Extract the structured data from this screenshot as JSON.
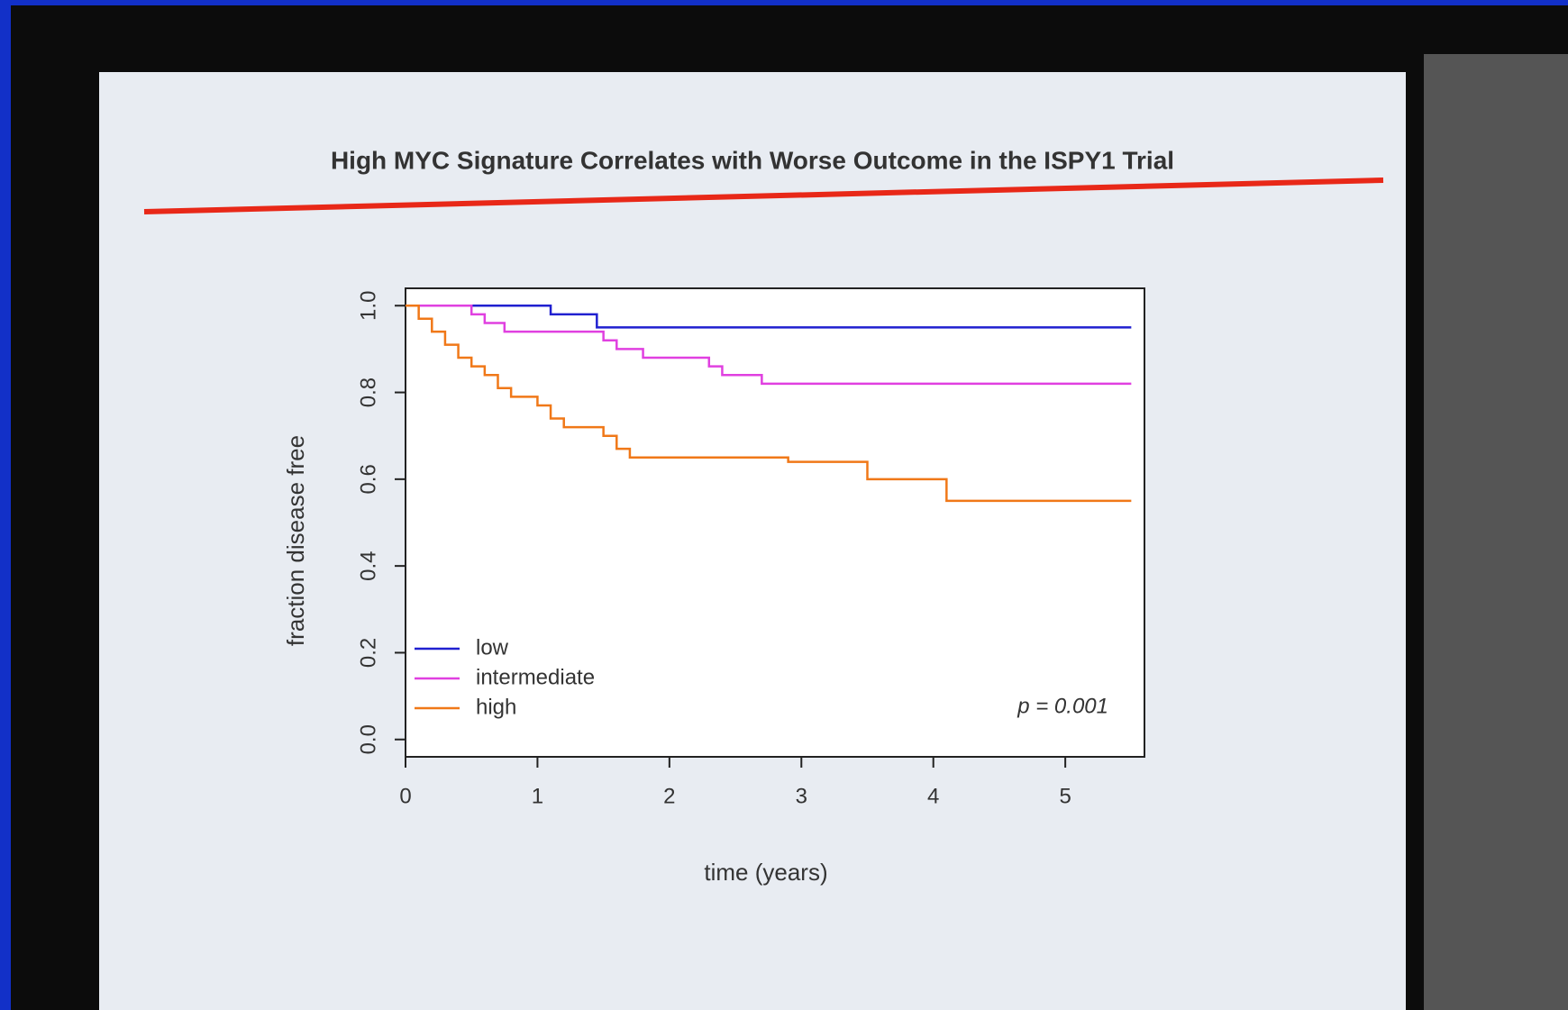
{
  "chart_data": {
    "type": "step",
    "title": "High MYC Signature Correlates with Worse Outcome in the ISPY1 Trial",
    "xlabel": "time (years)",
    "ylabel": "fraction disease free",
    "annotation": "p = 0.001",
    "xlim": [
      0,
      5.6
    ],
    "xticks": [
      0,
      1,
      2,
      3,
      4,
      5
    ],
    "ylim": [
      -0.04,
      1.04
    ],
    "yticks": [
      {
        "value": 0,
        "label": "0.0"
      },
      0.2,
      0.4,
      0.6,
      0.8,
      {
        "value": 1,
        "label": "1.0"
      }
    ],
    "legend": "bottom-left",
    "series": [
      {
        "name": "low",
        "color": "#2020d0",
        "x": [
          0,
          1.1,
          1.45,
          5.5
        ],
        "values": [
          1.0,
          0.98,
          0.95,
          0.95
        ]
      },
      {
        "name": "intermediate",
        "color": "#e040e0",
        "x": [
          0,
          0.5,
          0.6,
          0.75,
          1.5,
          1.6,
          1.8,
          2.3,
          2.4,
          2.7,
          5.5
        ],
        "values": [
          1.0,
          0.98,
          0.96,
          0.94,
          0.92,
          0.9,
          0.88,
          0.86,
          0.84,
          0.82,
          0.82
        ]
      },
      {
        "name": "high",
        "color": "#f07818",
        "x": [
          0,
          0.1,
          0.2,
          0.3,
          0.4,
          0.5,
          0.6,
          0.7,
          0.8,
          1.0,
          1.1,
          1.2,
          1.5,
          1.6,
          1.7,
          2.9,
          3.5,
          4.1,
          5.5
        ],
        "values": [
          1.0,
          0.97,
          0.94,
          0.91,
          0.88,
          0.86,
          0.84,
          0.81,
          0.79,
          0.77,
          0.74,
          0.72,
          0.7,
          0.67,
          0.65,
          0.64,
          0.6,
          0.55,
          0.55
        ]
      }
    ]
  }
}
